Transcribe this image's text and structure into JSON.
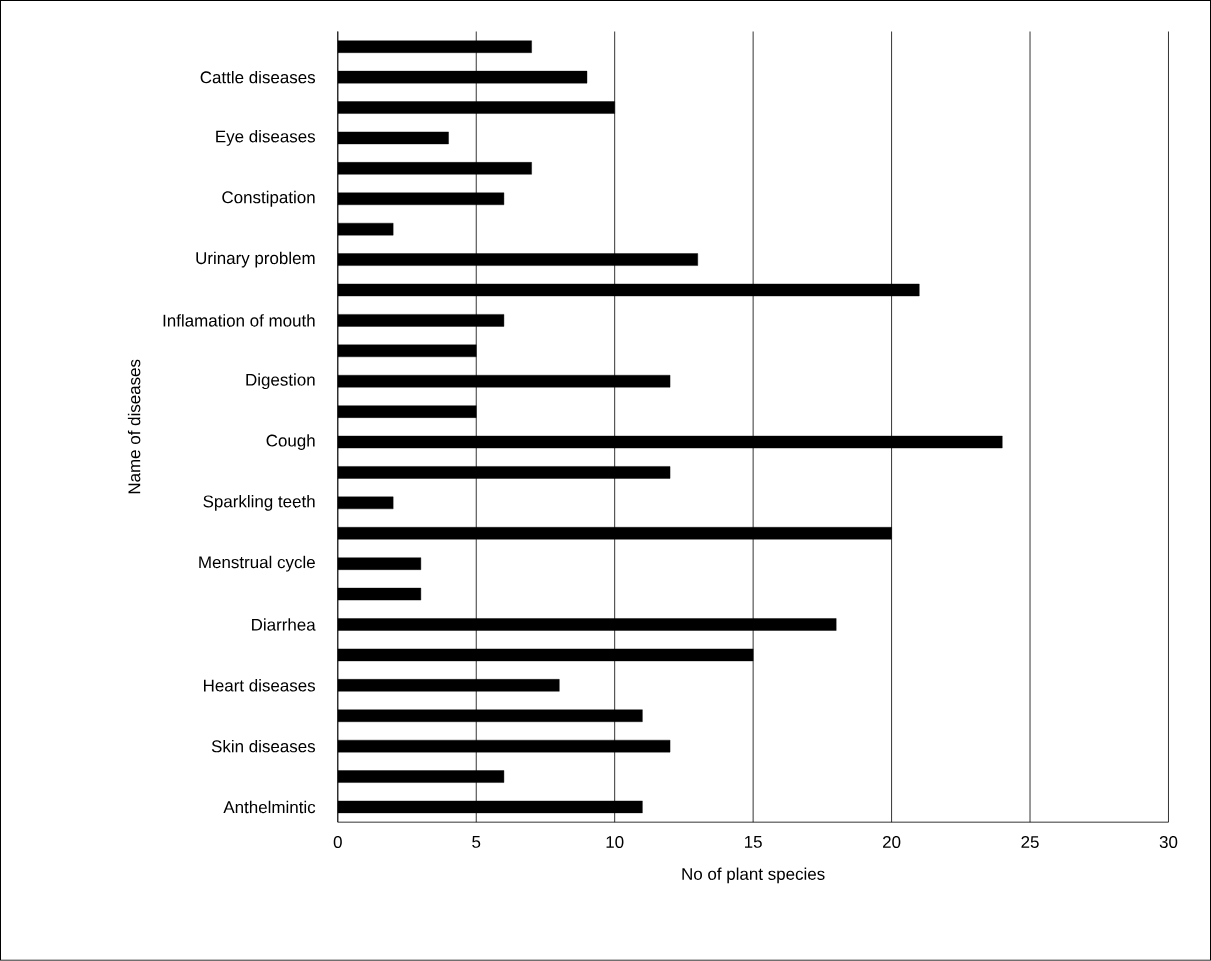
{
  "chart_data": {
    "type": "bar",
    "orientation": "horizontal",
    "xlabel": "No of plant species",
    "ylabel": "Name of diseases",
    "categories": [
      null,
      "Cattle diseases",
      null,
      "Eye diseases",
      null,
      "Constipation",
      null,
      "Urinary problem",
      null,
      "Inflamation of mouth",
      null,
      "Digestion",
      null,
      "Cough",
      null,
      "Sparkling teeth",
      null,
      "Menstrual cycle",
      null,
      "Diarrhea",
      null,
      "Heart diseases",
      null,
      "Skin diseases",
      null,
      "Anthelmintic"
    ],
    "values": [
      7,
      9,
      10,
      4,
      7,
      6,
      2,
      13,
      21,
      6,
      5,
      12,
      5,
      24,
      12,
      2,
      20,
      3,
      3,
      18,
      15,
      8,
      11,
      12,
      6,
      11
    ],
    "color": "#000000",
    "xlim": [
      0,
      30
    ],
    "xticks": [
      0,
      5,
      10,
      15,
      20,
      25,
      30
    ],
    "grid": "x"
  }
}
